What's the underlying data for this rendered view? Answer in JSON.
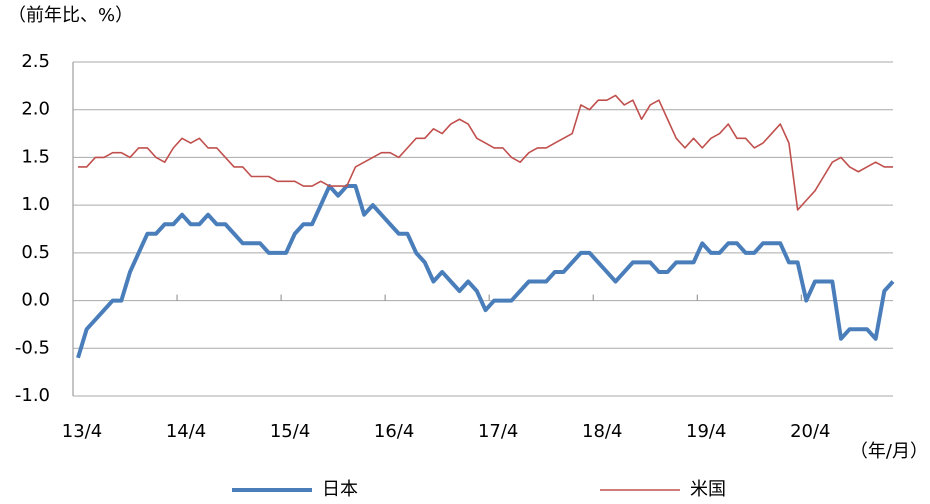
{
  "chart_data": {
    "type": "line",
    "y_axis_label": "（前年比、%）",
    "x_axis_label": "（年/月）",
    "categories": [
      "13/4",
      null,
      null,
      null,
      null,
      null,
      null,
      null,
      null,
      null,
      null,
      null,
      "14/4",
      null,
      null,
      null,
      null,
      null,
      null,
      null,
      null,
      null,
      null,
      null,
      "15/4",
      null,
      null,
      null,
      null,
      null,
      null,
      null,
      null,
      null,
      null,
      null,
      "16/4",
      null,
      null,
      null,
      null,
      null,
      null,
      null,
      null,
      null,
      null,
      null,
      "17/4",
      null,
      null,
      null,
      null,
      null,
      null,
      null,
      null,
      null,
      null,
      null,
      "18/4",
      null,
      null,
      null,
      null,
      null,
      null,
      null,
      null,
      null,
      null,
      null,
      "19/4",
      null,
      null,
      null,
      null,
      null,
      null,
      null,
      null,
      null,
      null,
      null,
      "20/4",
      null,
      null,
      null,
      null,
      null,
      null,
      null,
      null,
      null,
      null
    ],
    "series": [
      {
        "name": "日本",
        "color": "#4a7ebb",
        "width": 4,
        "values": [
          -0.6,
          -0.3,
          -0.2,
          -0.1,
          0.0,
          0.0,
          0.3,
          0.5,
          0.7,
          0.7,
          0.8,
          0.8,
          0.9,
          0.8,
          0.8,
          0.9,
          0.8,
          0.8,
          0.7,
          0.6,
          0.6,
          0.6,
          0.5,
          0.5,
          0.5,
          0.7,
          0.8,
          0.8,
          1.0,
          1.2,
          1.1,
          1.2,
          1.2,
          0.9,
          1.0,
          0.9,
          0.8,
          0.7,
          0.7,
          0.5,
          0.4,
          0.2,
          0.3,
          0.2,
          0.1,
          0.2,
          0.1,
          -0.1,
          0.0,
          0.0,
          0.0,
          0.1,
          0.2,
          0.2,
          0.2,
          0.3,
          0.3,
          0.4,
          0.5,
          0.5,
          0.4,
          0.3,
          0.2,
          0.3,
          0.4,
          0.4,
          0.4,
          0.3,
          0.3,
          0.4,
          0.4,
          0.4,
          0.6,
          0.5,
          0.5,
          0.6,
          0.6,
          0.5,
          0.5,
          0.6,
          0.6,
          0.6,
          0.4,
          0.4,
          0.0,
          0.2,
          0.2,
          0.2,
          -0.4,
          -0.3,
          -0.3,
          -0.3,
          -0.4,
          0.1,
          0.2
        ]
      },
      {
        "name": "米国",
        "color": "#c0504d",
        "width": 1.6,
        "values": [
          1.4,
          1.4,
          1.5,
          1.5,
          1.55,
          1.55,
          1.5,
          1.6,
          1.6,
          1.5,
          1.45,
          1.6,
          1.7,
          1.65,
          1.7,
          1.6,
          1.6,
          1.5,
          1.4,
          1.4,
          1.3,
          1.3,
          1.3,
          1.25,
          1.25,
          1.25,
          1.2,
          1.2,
          1.25,
          1.2,
          1.2,
          1.2,
          1.4,
          1.45,
          1.5,
          1.55,
          1.55,
          1.5,
          1.6,
          1.7,
          1.7,
          1.8,
          1.75,
          1.85,
          1.9,
          1.85,
          1.7,
          1.65,
          1.6,
          1.6,
          1.5,
          1.45,
          1.55,
          1.6,
          1.6,
          1.65,
          1.7,
          1.75,
          2.05,
          2.0,
          2.1,
          2.1,
          2.15,
          2.05,
          2.1,
          1.9,
          2.05,
          2.1,
          1.9,
          1.7,
          1.6,
          1.7,
          1.6,
          1.7,
          1.75,
          1.85,
          1.7,
          1.7,
          1.6,
          1.65,
          1.75,
          1.85,
          1.65,
          0.95,
          1.05,
          1.15,
          1.3,
          1.45,
          1.5,
          1.4,
          1.35,
          1.4,
          1.45,
          1.4,
          1.4
        ]
      }
    ],
    "ylim": [
      -1.0,
      2.5
    ],
    "yticks": [
      {
        "value": -1.0,
        "label": "-1.0"
      },
      -0.5,
      {
        "value": 0.0,
        "label": "0.0"
      },
      0.5,
      {
        "value": 1.0,
        "label": "1.0"
      },
      1.5,
      {
        "value": 2.0,
        "label": "2.0"
      },
      2.5
    ],
    "grid": true,
    "legend": "bottom"
  }
}
